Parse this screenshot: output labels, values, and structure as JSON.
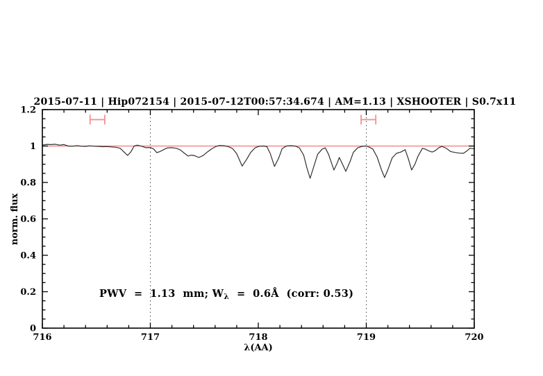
{
  "title": {
    "text": "2015-07-11 | Hip072154 | 2015-07-12T00:57:34.674 | AM=1.13 | XSHOOTER | S0.7x11"
  },
  "annotation": {
    "prefix": "PWV  =  1.13  mm; W",
    "subscript": "λ",
    "suffix": "  =  0.6Å  (corr: 0.53)"
  },
  "colors": {
    "accent_blue": "#2222dd",
    "reference_red": "#ee7878",
    "marker_red": "#f29090",
    "gridline": "#444444",
    "spectrum": "#2f2f2f",
    "frame": "#000000"
  },
  "chart_data": {
    "type": "line",
    "title": "2015-07-11 | Hip072154 | 2015-07-12T00:57:34.674 | AM=1.13 | XSHOOTER | S0.7x11",
    "xlabel": "λ(AA)",
    "ylabel": "norm. flux",
    "xlim": [
      716,
      720
    ],
    "ylim": [
      0,
      1.2
    ],
    "x_major_ticks": [
      716,
      717,
      718,
      719,
      720
    ],
    "x_tick_labels": [
      "716",
      "717",
      "718",
      "719",
      "720"
    ],
    "x_minor_step": 0.2,
    "y_major_ticks": [
      0,
      0.2,
      0.4,
      0.6,
      0.8,
      1.0,
      1.2
    ],
    "y_tick_labels": [
      "0",
      "0.2",
      "0.4",
      "0.6",
      "0.8",
      "1",
      "1.2"
    ],
    "y_minor_step": 0.05,
    "grid": "off",
    "legend": "none",
    "dotted_vlines": [
      717,
      719
    ],
    "reference_hline": {
      "y": 1.0
    },
    "pwv_markers": [
      {
        "x": 716.51,
        "halfwidth": 0.068,
        "flux": 1.145
      },
      {
        "x": 719.02,
        "halfwidth": 0.068,
        "flux": 1.145
      }
    ],
    "series": [
      {
        "name": "spectrum",
        "color": "#2f2f2f",
        "x": [
          716.0,
          716.04,
          716.08,
          716.12,
          716.16,
          716.2,
          716.24,
          716.28,
          716.32,
          716.36,
          716.4,
          716.44,
          716.48,
          716.52,
          716.56,
          716.6,
          716.64,
          716.68,
          716.72,
          716.76,
          716.79,
          716.82,
          716.85,
          716.88,
          716.92,
          716.96,
          717.0,
          717.03,
          717.06,
          717.09,
          717.13,
          717.16,
          717.2,
          717.24,
          717.28,
          717.32,
          717.35,
          717.38,
          717.41,
          717.45,
          717.49,
          717.53,
          717.57,
          717.61,
          717.64,
          717.68,
          717.72,
          717.76,
          717.8,
          717.85,
          717.89,
          717.93,
          717.97,
          718.01,
          718.05,
          718.08,
          718.11,
          718.15,
          718.19,
          718.22,
          718.26,
          718.3,
          718.34,
          718.38,
          718.42,
          718.45,
          718.48,
          718.51,
          718.55,
          718.59,
          718.62,
          718.65,
          718.7,
          718.73,
          718.75,
          718.78,
          718.81,
          718.85,
          718.88,
          718.92,
          718.96,
          719.0,
          719.03,
          719.06,
          719.1,
          719.14,
          719.17,
          719.2,
          719.24,
          719.28,
          719.32,
          719.36,
          719.39,
          719.42,
          719.45,
          719.48,
          719.52,
          719.55,
          719.58,
          719.61,
          719.64,
          719.67,
          719.7,
          719.74,
          719.78,
          719.82,
          719.86,
          719.9,
          719.93,
          719.96,
          720.0
        ],
        "y": [
          1.005,
          1.009,
          1.008,
          1.01,
          1.005,
          1.008,
          1.0,
          0.999,
          1.002,
          0.999,
          0.998,
          1.001,
          0.999,
          0.998,
          0.996,
          0.997,
          0.995,
          0.993,
          0.988,
          0.965,
          0.948,
          0.968,
          1.0,
          1.005,
          0.999,
          0.991,
          0.992,
          0.984,
          0.964,
          0.97,
          0.982,
          0.99,
          0.991,
          0.988,
          0.978,
          0.958,
          0.945,
          0.95,
          0.947,
          0.937,
          0.948,
          0.968,
          0.985,
          0.998,
          1.003,
          1.002,
          0.997,
          0.987,
          0.958,
          0.89,
          0.925,
          0.965,
          0.99,
          0.999,
          1.0,
          0.996,
          0.96,
          0.888,
          0.935,
          0.985,
          1.0,
          1.002,
          1.0,
          0.99,
          0.95,
          0.88,
          0.823,
          0.88,
          0.955,
          0.982,
          0.99,
          0.955,
          0.868,
          0.905,
          0.937,
          0.9,
          0.861,
          0.915,
          0.965,
          0.99,
          0.998,
          1.0,
          0.993,
          0.984,
          0.94,
          0.87,
          0.827,
          0.87,
          0.935,
          0.96,
          0.967,
          0.98,
          0.93,
          0.868,
          0.9,
          0.945,
          0.988,
          0.982,
          0.973,
          0.967,
          0.975,
          0.99,
          0.998,
          0.988,
          0.97,
          0.965,
          0.961,
          0.96,
          0.972,
          0.988,
          0.984
        ]
      }
    ]
  }
}
